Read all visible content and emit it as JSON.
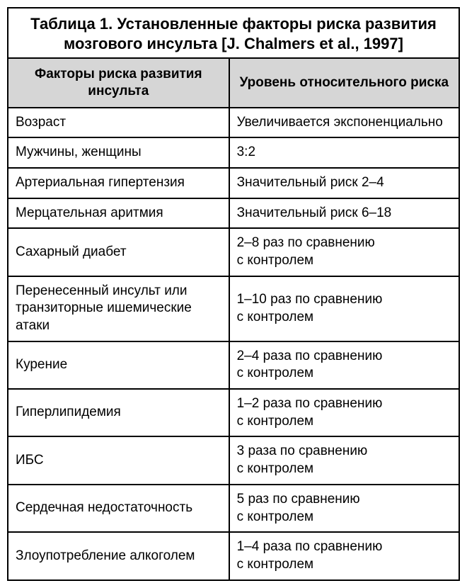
{
  "table": {
    "type": "table",
    "title": "Таблица 1. Установленные факторы риска развития мозгового инсульта\n[J. Chalmers et al., 1997]",
    "title_fontsize": 22,
    "header_fontsize": 19,
    "cell_fontsize": 19,
    "header_bg": "#d6d6d6",
    "border_color": "#000000",
    "background_color": "#ffffff",
    "column_widths_pct": [
      49,
      51
    ],
    "columns": [
      "Факторы риска развития инсульта",
      "Уровень относительного риска"
    ],
    "rows": [
      [
        "Возраст",
        "Увеличивается экспоненциально"
      ],
      [
        "Мужчины, женщины",
        "3:2"
      ],
      [
        "Артериальная гипертензия",
        "Значительный риск 2–4"
      ],
      [
        "Мерцательная аритмия",
        "Значительный риск 6–18"
      ],
      [
        "Сахарный диабет",
        "2–8 раз по сравнению\nс контролем"
      ],
      [
        "Перенесенный инсульт или транзиторные ишемические атаки",
        "1–10 раз по сравнению\nс контролем"
      ],
      [
        "Курение",
        "2–4 раза по сравнению\nс контролем"
      ],
      [
        "Гиперлипидемия",
        "1–2 раза по сравнению\nс контролем"
      ],
      [
        "ИБС",
        "3 раза по сравнению\nс контролем"
      ],
      [
        "Сердечная недостаточность",
        "5 раз по сравнению\nс контролем"
      ],
      [
        "Злоупотребление алкоголем",
        "1–4 раза по сравнению\nс контролем"
      ]
    ]
  }
}
